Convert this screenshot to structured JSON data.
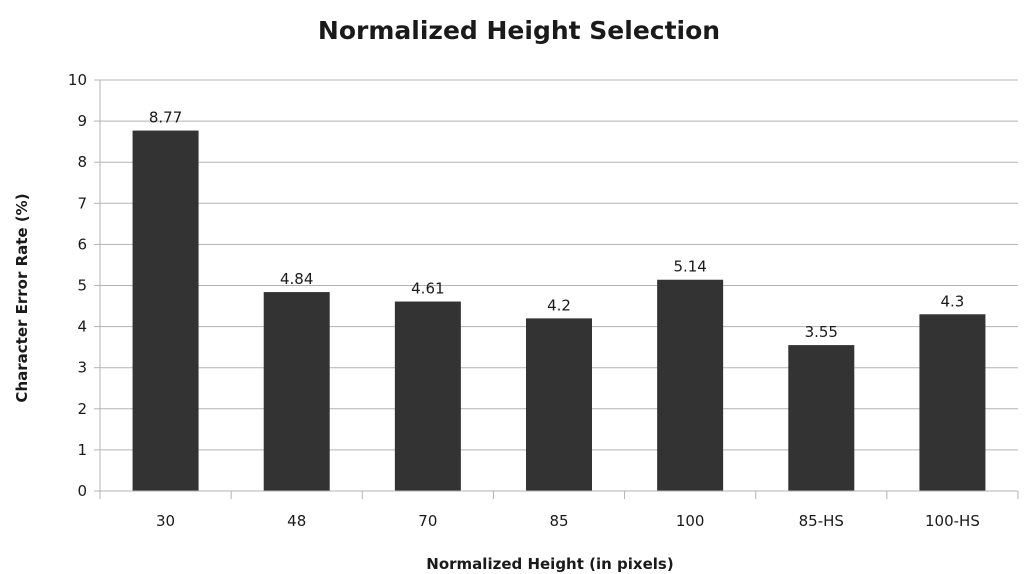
{
  "chart_data": {
    "type": "bar",
    "title": "Normalized Height Selection",
    "xlabel": "Normalized Height (in pixels)",
    "ylabel": "Character Error Rate (%)",
    "categories": [
      "30",
      "48",
      "70",
      "85",
      "100",
      "85-HS",
      "100-HS"
    ],
    "values": [
      8.77,
      4.84,
      4.61,
      4.2,
      5.14,
      3.55,
      4.3
    ],
    "data_labels": [
      "8.77",
      "4.84",
      "4.61",
      "4.2",
      "5.14",
      "3.55",
      "4.3"
    ],
    "ylim": [
      0,
      10
    ],
    "yticks": [
      0,
      1,
      2,
      3,
      4,
      5,
      6,
      7,
      8,
      9,
      10
    ],
    "grid": true,
    "legend": "none",
    "bar_color": "#333333"
  }
}
